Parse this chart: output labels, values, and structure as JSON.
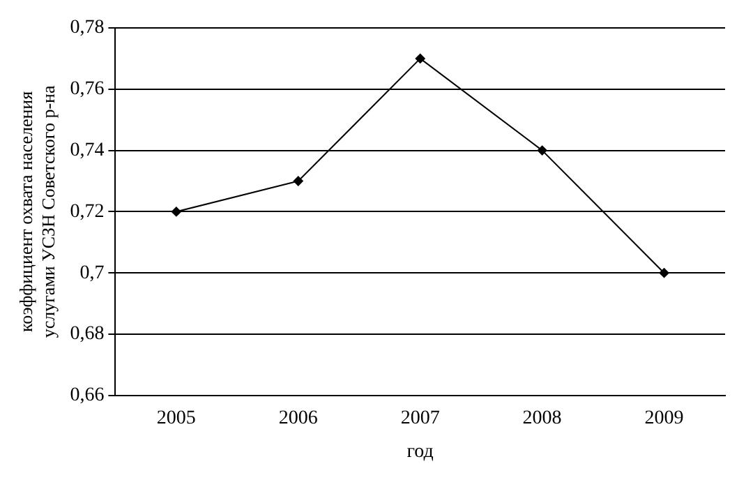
{
  "chart_data": {
    "type": "line",
    "xlabel": "год",
    "ylabel": "коэффициент охвата населения\nуслугами УСЗН Советского р-на",
    "categories": [
      "2005",
      "2006",
      "2007",
      "2008",
      "2009"
    ],
    "series": [
      {
        "color": "#000000",
        "values": [
          0.72,
          0.73,
          0.77,
          0.74,
          0.7
        ]
      }
    ],
    "ylim": [
      0.66,
      0.78
    ],
    "yticks": [
      {
        "value": 0.66,
        "label": "0,66"
      },
      {
        "value": 0.68,
        "label": "0,68"
      },
      {
        "value": 0.7,
        "label": "0,7"
      },
      {
        "value": 0.72,
        "label": "0,72"
      },
      {
        "value": 0.74,
        "label": "0,74"
      },
      {
        "value": 0.76,
        "label": "0,76"
      },
      {
        "value": 0.78,
        "label": "0,78"
      }
    ],
    "grid": "y",
    "legend": false,
    "marker": "diamond",
    "line_style": "solid"
  }
}
